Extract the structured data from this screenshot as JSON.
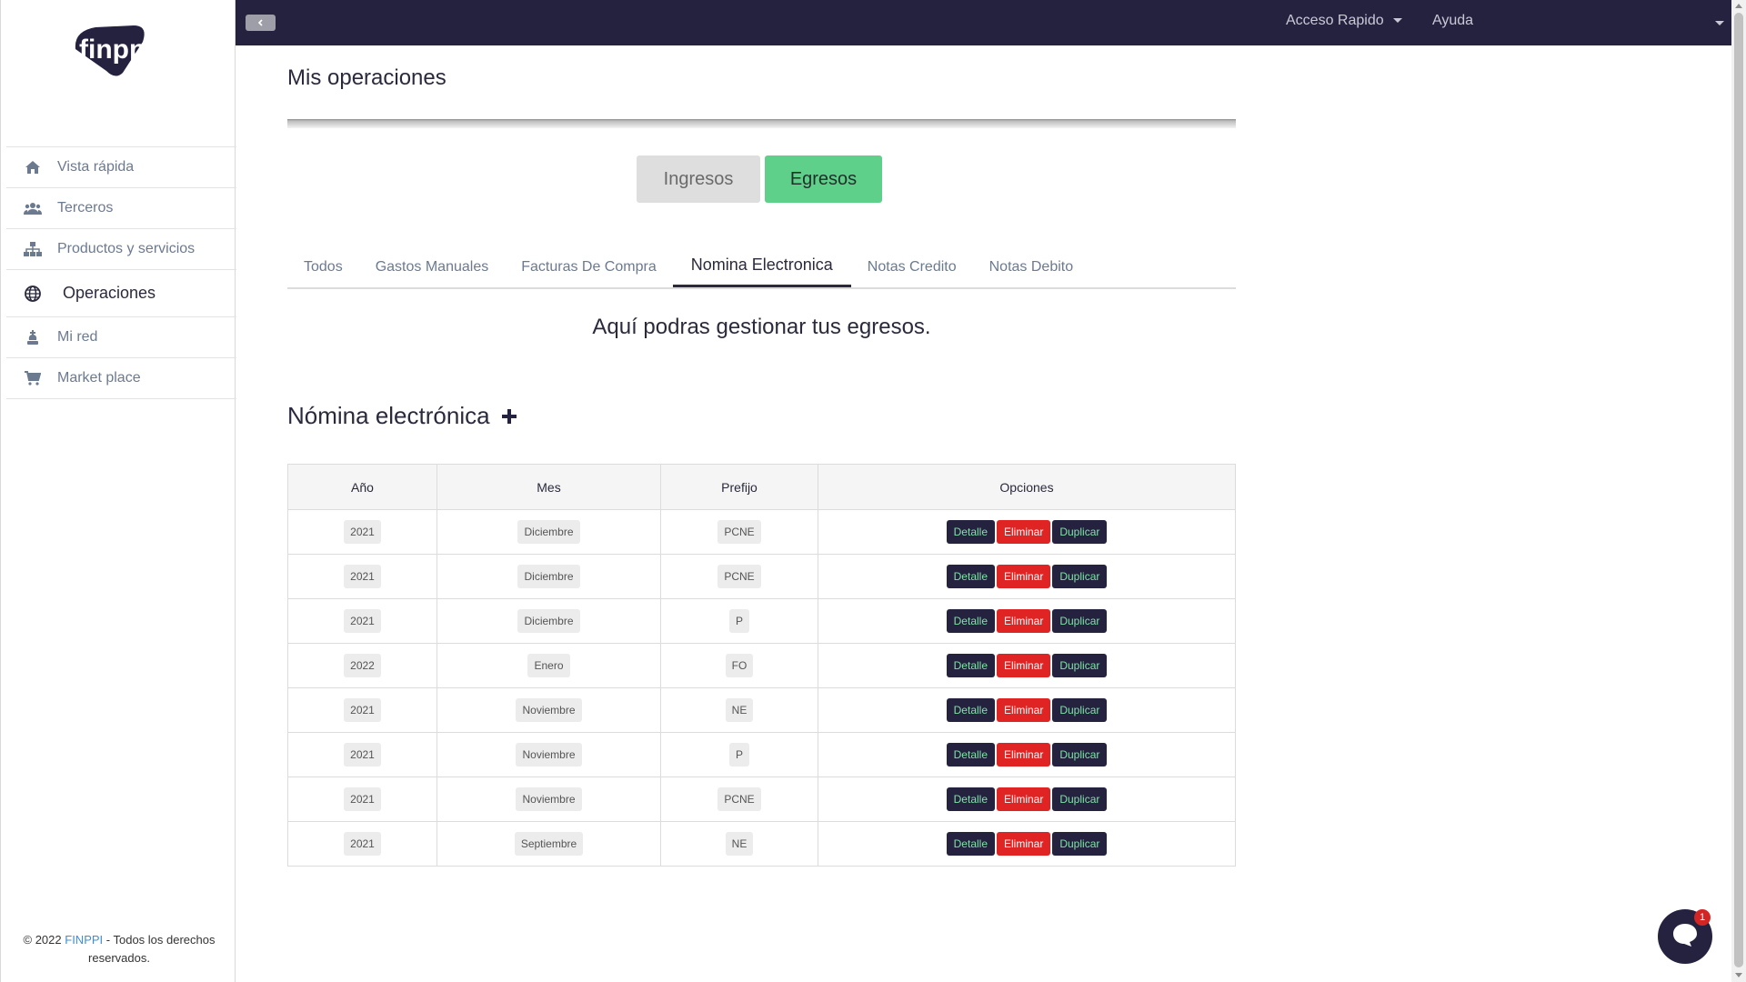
{
  "app": {
    "logo_text": "finppi",
    "brand_color": "#24223f",
    "accent_color": "#5fd08a",
    "danger_color": "#e02424"
  },
  "sidebar": {
    "items": [
      {
        "label": "Vista rápida",
        "icon": "home-icon"
      },
      {
        "label": "Terceros",
        "icon": "users-icon"
      },
      {
        "label": "Productos y servicios",
        "icon": "sitemap-icon"
      },
      {
        "label": "Operaciones",
        "icon": "globe-icon",
        "active": true
      },
      {
        "label": "Mi red",
        "icon": "chess-king-icon"
      },
      {
        "label": "Market place",
        "icon": "cart-icon"
      }
    ],
    "footer": {
      "prefix": "© 2022",
      "brand": "FINPPI",
      "suffix": "- Todos los derechos reservados."
    }
  },
  "topbar": {
    "acceso_rapido": "Acceso Rapido",
    "ayuda": "Ayuda"
  },
  "main": {
    "title": "Mis operaciones",
    "switch": {
      "ingresos": "Ingresos",
      "egresos": "Egresos",
      "selected": "Egresos"
    },
    "tabs": [
      {
        "label": "Todos"
      },
      {
        "label": "Gastos Manuales"
      },
      {
        "label": "Facturas De Compra"
      },
      {
        "label": "Nomina Electronica",
        "active": true
      },
      {
        "label": "Notas Credito"
      },
      {
        "label": "Notas Debito"
      }
    ],
    "subtitle": "Aquí podras gestionar tus egresos.",
    "section_title": "Nómina electrónica"
  },
  "table": {
    "headers": [
      "Año",
      "Mes",
      "Prefijo",
      "Opciones"
    ],
    "actions": {
      "detalle": "Detalle",
      "eliminar": "Eliminar",
      "duplicar": "Duplicar"
    },
    "rows": [
      {
        "ano": "2021",
        "mes": "Diciembre",
        "prefijo": "PCNE"
      },
      {
        "ano": "2021",
        "mes": "Diciembre",
        "prefijo": "PCNE"
      },
      {
        "ano": "2021",
        "mes": "Diciembre",
        "prefijo": "P"
      },
      {
        "ano": "2022",
        "mes": "Enero",
        "prefijo": "FO"
      },
      {
        "ano": "2021",
        "mes": "Noviembre",
        "prefijo": "NE"
      },
      {
        "ano": "2021",
        "mes": "Noviembre",
        "prefijo": "P"
      },
      {
        "ano": "2021",
        "mes": "Noviembre",
        "prefijo": "PCNE"
      },
      {
        "ano": "2021",
        "mes": "Septiembre",
        "prefijo": "NE"
      }
    ]
  },
  "chat": {
    "badge": "1"
  }
}
